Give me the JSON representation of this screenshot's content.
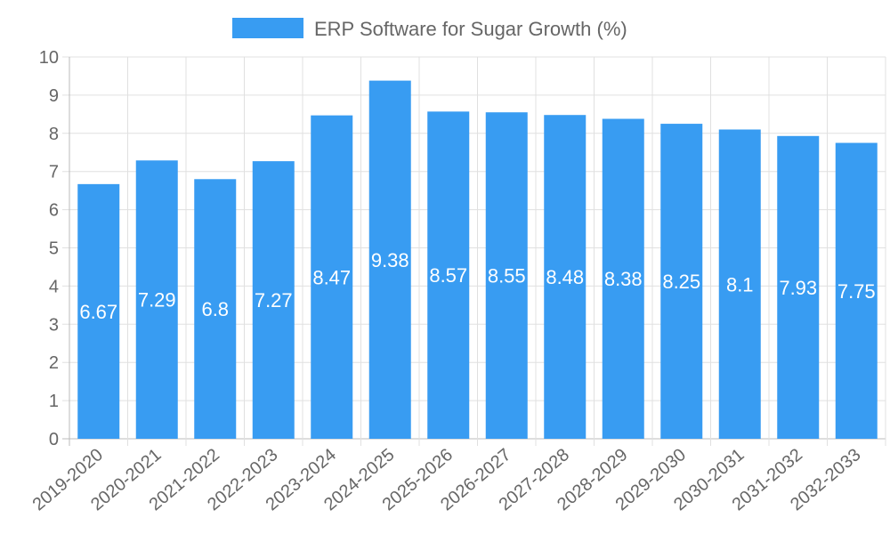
{
  "chart_data": {
    "type": "bar",
    "title": "",
    "xlabel": "",
    "ylabel": "",
    "ylim": [
      0,
      10
    ],
    "yticks": [
      0,
      1,
      2,
      3,
      4,
      5,
      6,
      7,
      8,
      9,
      10
    ],
    "grid": true,
    "legend_position": "top-center",
    "categories": [
      "2019-2020",
      "2020-2021",
      "2021-2022",
      "2022-2023",
      "2023-2024",
      "2024-2025",
      "2025-2026",
      "2026-2027",
      "2027-2028",
      "2028-2029",
      "2029-2030",
      "2030-2031",
      "2031-2032",
      "2032-2033"
    ],
    "series": [
      {
        "name": "ERP Software for Sugar Growth (%)",
        "color": "#389cf2",
        "values": [
          6.67,
          7.29,
          6.8,
          7.27,
          8.47,
          9.38,
          8.57,
          8.55,
          8.48,
          8.38,
          8.25,
          8.1,
          7.93,
          7.75
        ]
      }
    ]
  }
}
